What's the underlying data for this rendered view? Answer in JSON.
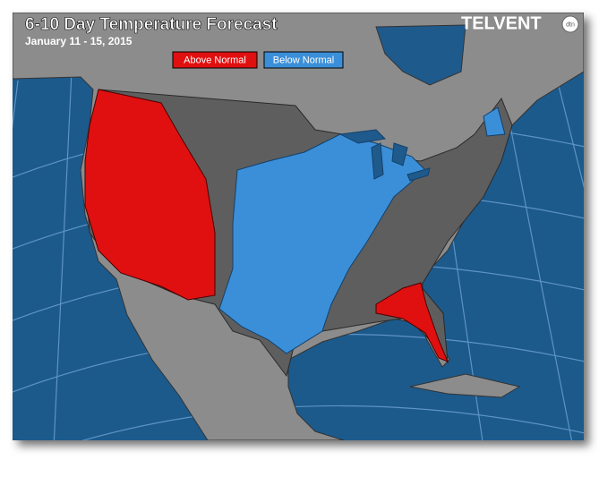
{
  "header": {
    "title": "6-10 Day Temperature Forecast",
    "subtitle": "January 11 - 15, 2015"
  },
  "legend": {
    "items": [
      {
        "label": "Above Normal"
      },
      {
        "label": "Below Normal"
      }
    ]
  },
  "logo": {
    "name": "TELVENT",
    "badge": "dtn"
  }
}
